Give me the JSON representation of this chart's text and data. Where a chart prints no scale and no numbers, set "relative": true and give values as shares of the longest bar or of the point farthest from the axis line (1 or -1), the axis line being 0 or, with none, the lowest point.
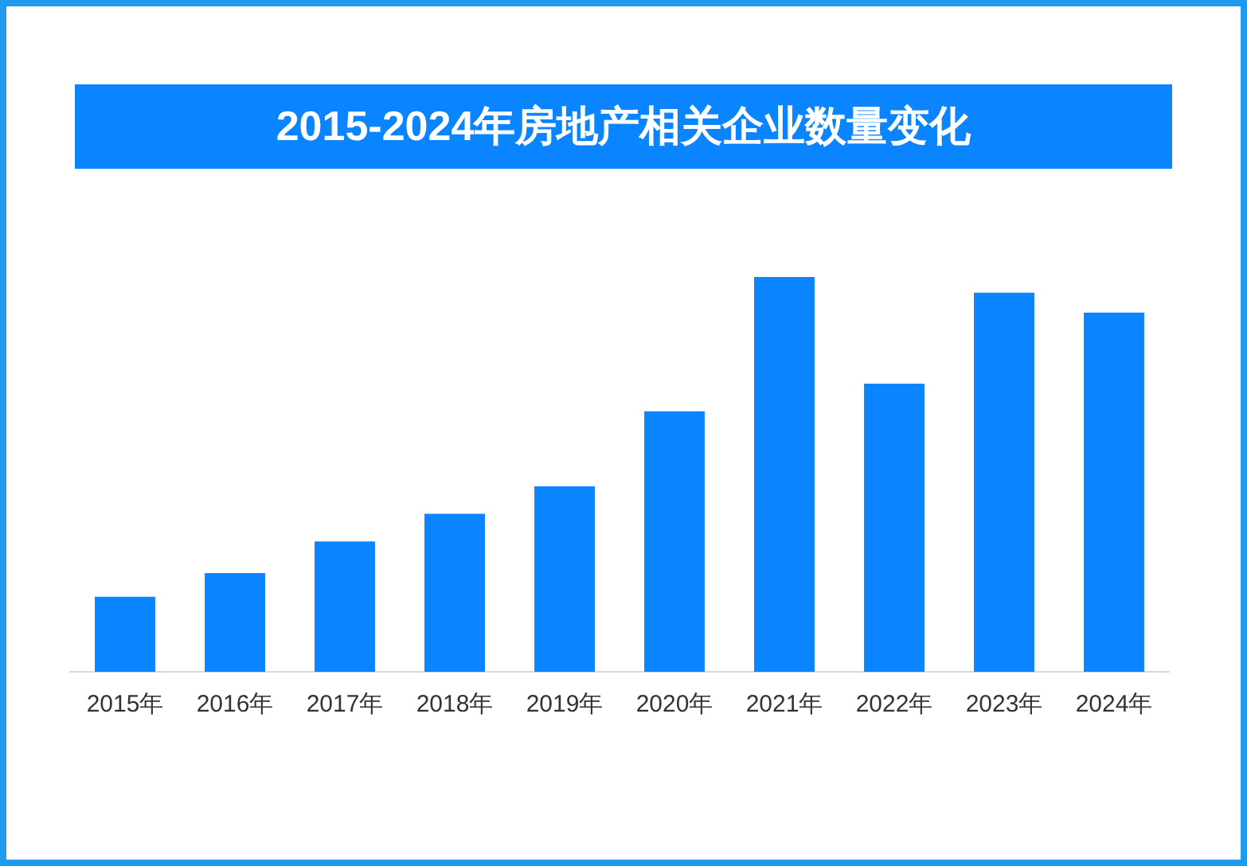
{
  "chart_data": {
    "type": "bar",
    "title": "2015-2024年房地产相关企业数量变化",
    "categories": [
      "2015年",
      "2016年",
      "2017年",
      "2018年",
      "2019年",
      "2020年",
      "2021年",
      "2022年",
      "2023年",
      "2024年"
    ],
    "values": [
      0.19,
      0.25,
      0.33,
      0.4,
      0.47,
      0.66,
      1,
      0.73,
      0.96,
      0.91
    ],
    "color": "#0a84ff",
    "relative": true,
    "grid": false,
    "legend": false
  }
}
